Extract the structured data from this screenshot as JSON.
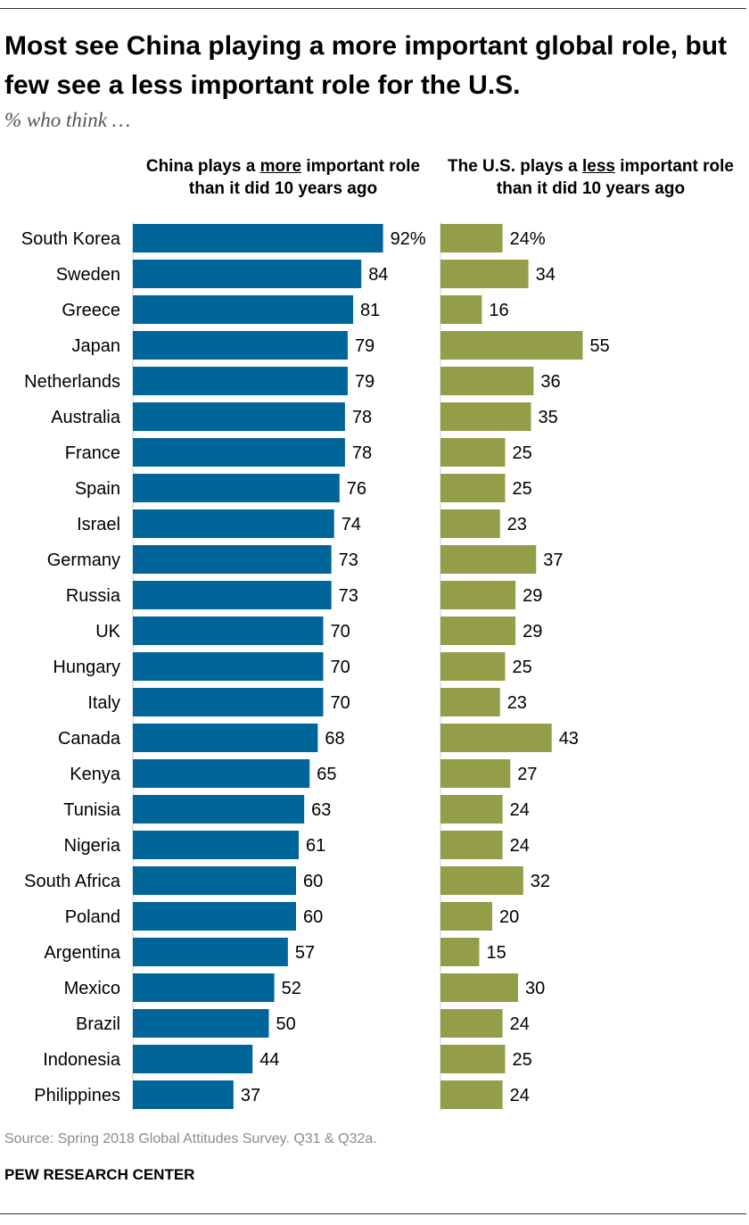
{
  "title": "Most see China playing a more important global role, but few see a less important role for the U.S.",
  "subtitle": "% who think …",
  "columns": {
    "left": {
      "before": "China plays a ",
      "emph": "more",
      "after": " important role than it did 10 years ago"
    },
    "right": {
      "before": "The U.S. plays a ",
      "emph": "less",
      "after": " important role than it did 10 years ago"
    }
  },
  "source": "Source: Spring 2018 Global Attitudes Survey. Q31 & Q32a.",
  "brand": "PEW RESEARCH CENTER",
  "colors": {
    "china": "#006699",
    "us": "#949d48",
    "text": "#000000"
  },
  "chart_data": {
    "type": "bar",
    "orientation": "horizontal",
    "value_suffix_first_row": "%",
    "categories": [
      "South Korea",
      "Sweden",
      "Greece",
      "Japan",
      "Netherlands",
      "Australia",
      "France",
      "Spain",
      "Israel",
      "Germany",
      "Russia",
      "UK",
      "Hungary",
      "Italy",
      "Canada",
      "Kenya",
      "Tunisia",
      "Nigeria",
      "South Africa",
      "Poland",
      "Argentina",
      "Mexico",
      "Brazil",
      "Indonesia",
      "Philippines"
    ],
    "series": [
      {
        "name": "China plays a more important role than it did 10 years ago",
        "color": "#006699",
        "values": [
          92,
          84,
          81,
          79,
          79,
          78,
          78,
          76,
          74,
          73,
          73,
          70,
          70,
          70,
          68,
          65,
          63,
          61,
          60,
          60,
          57,
          52,
          50,
          44,
          37
        ]
      },
      {
        "name": "The U.S. plays a less important role than it did 10 years ago",
        "color": "#949d48",
        "values": [
          24,
          34,
          16,
          55,
          36,
          35,
          25,
          25,
          23,
          37,
          29,
          29,
          25,
          23,
          43,
          27,
          24,
          24,
          32,
          20,
          15,
          30,
          24,
          25,
          24
        ]
      }
    ],
    "xlim": [
      0,
      100
    ]
  }
}
